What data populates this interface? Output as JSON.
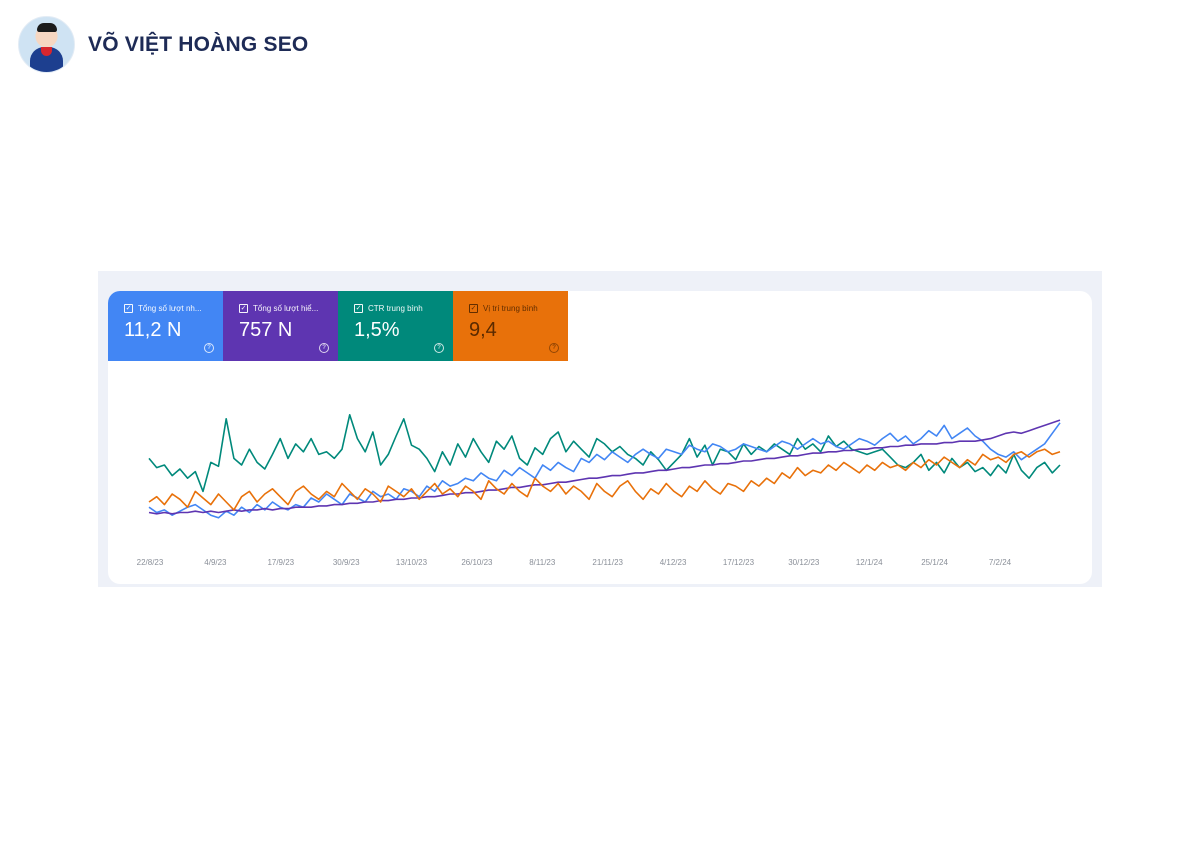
{
  "header": {
    "brand_name": "VÕ VIỆT HOÀNG SEO",
    "avatar_icon": "person-avatar-icon"
  },
  "metrics": [
    {
      "label": "Tổng số lượt nh...",
      "value": "11,2 N",
      "color": "#4286f4"
    },
    {
      "label": "Tổng số lượt hiể...",
      "value": "757 N",
      "color": "#5e35b1"
    },
    {
      "label": "CTR trung bình",
      "value": "1,5%",
      "color": "#00897b"
    },
    {
      "label": "Vị trí trung bình",
      "value": "9,4",
      "color": "#e8710a"
    }
  ],
  "chart_data": {
    "type": "line",
    "x_ticks": [
      "22/8/23",
      "4/9/23",
      "17/9/23",
      "30/9/23",
      "13/10/23",
      "26/10/23",
      "8/11/23",
      "21/11/23",
      "4/12/23",
      "17/12/23",
      "30/12/23",
      "12/1/24",
      "25/1/24",
      "7/2/24"
    ],
    "grid": false,
    "legend": "top-left metric cards",
    "series": [
      {
        "color": "#00897b",
        "values": [
          0.55,
          0.48,
          0.5,
          0.42,
          0.47,
          0.4,
          0.45,
          0.3,
          0.52,
          0.49,
          0.85,
          0.55,
          0.5,
          0.62,
          0.52,
          0.47,
          0.58,
          0.7,
          0.55,
          0.66,
          0.6,
          0.7,
          0.58,
          0.6,
          0.55,
          0.62,
          0.88,
          0.7,
          0.6,
          0.75,
          0.5,
          0.58,
          0.72,
          0.85,
          0.65,
          0.62,
          0.55,
          0.45,
          0.6,
          0.5,
          0.66,
          0.56,
          0.7,
          0.6,
          0.52,
          0.68,
          0.62,
          0.72,
          0.55,
          0.5,
          0.63,
          0.58,
          0.7,
          0.75,
          0.6,
          0.68,
          0.62,
          0.56,
          0.7,
          0.66,
          0.6,
          0.64,
          0.58,
          0.55,
          0.5,
          0.6,
          0.54,
          0.46,
          0.52,
          0.58,
          0.7,
          0.56,
          0.65,
          0.5,
          0.62,
          0.6,
          0.54,
          0.66,
          0.58,
          0.64,
          0.6,
          0.66,
          0.62,
          0.58,
          0.7,
          0.62,
          0.66,
          0.6,
          0.72,
          0.64,
          0.68,
          0.62,
          0.6,
          0.58,
          0.6,
          0.62,
          0.56,
          0.5,
          0.48,
          0.52,
          0.58,
          0.46,
          0.52,
          0.44,
          0.55,
          0.48,
          0.52,
          0.45,
          0.48,
          0.42,
          0.5,
          0.44,
          0.58,
          0.46,
          0.4,
          0.48,
          0.52,
          0.44,
          0.5
        ]
      },
      {
        "color": "#4286f4",
        "values": [
          0.18,
          0.14,
          0.16,
          0.12,
          0.15,
          0.18,
          0.2,
          0.16,
          0.12,
          0.1,
          0.15,
          0.12,
          0.18,
          0.14,
          0.2,
          0.16,
          0.22,
          0.18,
          0.16,
          0.2,
          0.18,
          0.25,
          0.22,
          0.28,
          0.24,
          0.2,
          0.28,
          0.25,
          0.22,
          0.3,
          0.26,
          0.28,
          0.24,
          0.32,
          0.3,
          0.26,
          0.34,
          0.3,
          0.38,
          0.34,
          0.36,
          0.4,
          0.38,
          0.44,
          0.4,
          0.38,
          0.46,
          0.42,
          0.48,
          0.44,
          0.4,
          0.5,
          0.46,
          0.52,
          0.48,
          0.45,
          0.55,
          0.52,
          0.58,
          0.54,
          0.6,
          0.56,
          0.52,
          0.58,
          0.62,
          0.58,
          0.55,
          0.62,
          0.6,
          0.58,
          0.65,
          0.62,
          0.6,
          0.66,
          0.64,
          0.6,
          0.62,
          0.66,
          0.64,
          0.62,
          0.6,
          0.64,
          0.68,
          0.66,
          0.62,
          0.66,
          0.7,
          0.66,
          0.68,
          0.64,
          0.62,
          0.66,
          0.7,
          0.68,
          0.65,
          0.7,
          0.74,
          0.68,
          0.72,
          0.66,
          0.7,
          0.76,
          0.72,
          0.8,
          0.7,
          0.74,
          0.78,
          0.72,
          0.68,
          0.62,
          0.58,
          0.56,
          0.6,
          0.54,
          0.58,
          0.62,
          0.66,
          0.74,
          0.82
        ]
      },
      {
        "color": "#5e35b1",
        "values": [
          0.14,
          0.13,
          0.14,
          0.13,
          0.14,
          0.14,
          0.15,
          0.14,
          0.15,
          0.14,
          0.15,
          0.16,
          0.15,
          0.16,
          0.16,
          0.17,
          0.16,
          0.17,
          0.17,
          0.18,
          0.18,
          0.18,
          0.19,
          0.19,
          0.2,
          0.2,
          0.21,
          0.21,
          0.22,
          0.22,
          0.23,
          0.23,
          0.24,
          0.24,
          0.25,
          0.25,
          0.26,
          0.26,
          0.27,
          0.28,
          0.28,
          0.29,
          0.29,
          0.3,
          0.31,
          0.31,
          0.32,
          0.33,
          0.33,
          0.34,
          0.35,
          0.35,
          0.36,
          0.37,
          0.37,
          0.38,
          0.39,
          0.4,
          0.4,
          0.41,
          0.42,
          0.42,
          0.43,
          0.44,
          0.44,
          0.45,
          0.46,
          0.46,
          0.47,
          0.48,
          0.48,
          0.49,
          0.5,
          0.5,
          0.51,
          0.51,
          0.52,
          0.53,
          0.53,
          0.54,
          0.55,
          0.55,
          0.56,
          0.57,
          0.57,
          0.58,
          0.59,
          0.59,
          0.6,
          0.6,
          0.61,
          0.61,
          0.62,
          0.62,
          0.63,
          0.63,
          0.64,
          0.64,
          0.65,
          0.65,
          0.66,
          0.66,
          0.66,
          0.67,
          0.67,
          0.68,
          0.68,
          0.68,
          0.69,
          0.7,
          0.72,
          0.74,
          0.75,
          0.74,
          0.76,
          0.78,
          0.8,
          0.82,
          0.84
        ]
      },
      {
        "color": "#e8710a",
        "values": [
          0.22,
          0.26,
          0.2,
          0.28,
          0.24,
          0.18,
          0.3,
          0.25,
          0.2,
          0.28,
          0.22,
          0.16,
          0.26,
          0.3,
          0.22,
          0.28,
          0.32,
          0.26,
          0.2,
          0.3,
          0.34,
          0.28,
          0.24,
          0.3,
          0.26,
          0.36,
          0.3,
          0.24,
          0.32,
          0.28,
          0.22,
          0.34,
          0.3,
          0.26,
          0.32,
          0.24,
          0.3,
          0.36,
          0.28,
          0.32,
          0.26,
          0.34,
          0.3,
          0.24,
          0.38,
          0.32,
          0.28,
          0.36,
          0.3,
          0.26,
          0.4,
          0.34,
          0.3,
          0.36,
          0.28,
          0.34,
          0.3,
          0.24,
          0.36,
          0.3,
          0.26,
          0.34,
          0.38,
          0.3,
          0.24,
          0.32,
          0.28,
          0.36,
          0.3,
          0.26,
          0.34,
          0.3,
          0.38,
          0.32,
          0.28,
          0.36,
          0.34,
          0.3,
          0.38,
          0.34,
          0.4,
          0.36,
          0.44,
          0.4,
          0.48,
          0.42,
          0.46,
          0.44,
          0.5,
          0.46,
          0.52,
          0.48,
          0.44,
          0.5,
          0.46,
          0.52,
          0.48,
          0.5,
          0.46,
          0.52,
          0.48,
          0.54,
          0.5,
          0.56,
          0.52,
          0.48,
          0.54,
          0.5,
          0.58,
          0.54,
          0.56,
          0.52,
          0.58,
          0.6,
          0.56,
          0.6,
          0.62,
          0.58,
          0.6
        ]
      }
    ]
  }
}
